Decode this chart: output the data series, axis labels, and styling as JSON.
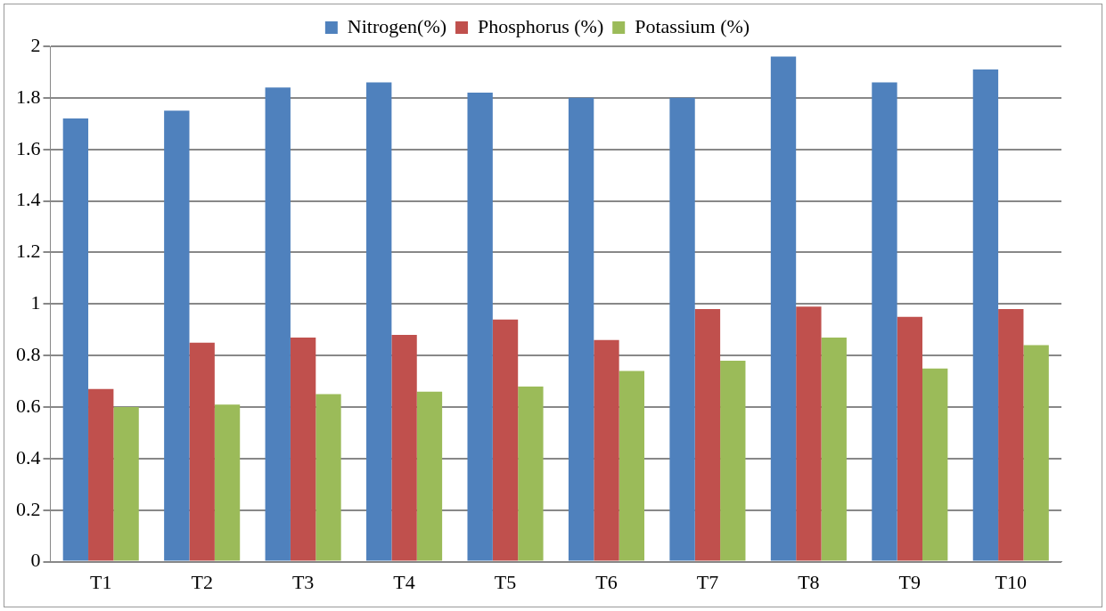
{
  "chart_data": {
    "type": "bar",
    "categories": [
      "T1",
      "T2",
      "T3",
      "T4",
      "T5",
      "T6",
      "T7",
      "T8",
      "T9",
      "T10"
    ],
    "series": [
      {
        "name": "Nitrogen(%)",
        "color": "#4f81bd",
        "values": [
          1.72,
          1.75,
          1.84,
          1.86,
          1.82,
          1.8,
          1.8,
          1.96,
          1.86,
          1.91
        ]
      },
      {
        "name": "Phosphorus (%)",
        "color": "#c0504d",
        "values": [
          0.67,
          0.85,
          0.87,
          0.88,
          0.94,
          0.86,
          0.98,
          0.99,
          0.95,
          0.98
        ]
      },
      {
        "name": "Potassium (%)",
        "color": "#9bbb59",
        "values": [
          0.6,
          0.61,
          0.65,
          0.66,
          0.68,
          0.74,
          0.78,
          0.87,
          0.75,
          0.84
        ]
      }
    ],
    "ylim": [
      0,
      2
    ],
    "yticks": [
      0,
      0.2,
      0.4,
      0.6,
      0.8,
      1,
      1.2,
      1.4,
      1.6,
      1.8,
      2
    ],
    "grid": "y",
    "legend": "top"
  }
}
